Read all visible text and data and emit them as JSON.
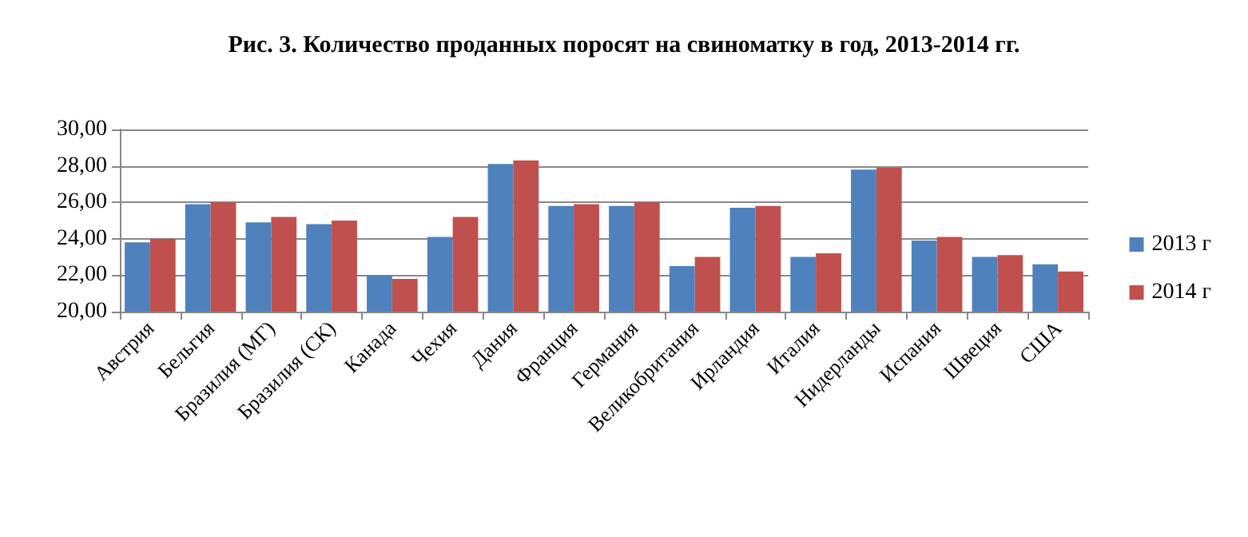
{
  "chart_data": {
    "type": "bar",
    "title": "Рис. 3. Количество проданных поросят на свиноматку в год, 2013-2014 гг.",
    "categories": [
      "Австрия",
      "Бельгия",
      "Бразилия (МГ)",
      "Бразилия (СК)",
      "Канада",
      "Чехия",
      "Дания",
      "Франция",
      "Германия",
      "Великобритания",
      "Ирландия",
      "Италия",
      "Нидерланды",
      "Испания",
      "Швеция",
      "США"
    ],
    "series": [
      {
        "name": "2013 г",
        "color": "#4f81bd",
        "values": [
          23.8,
          25.9,
          24.9,
          24.8,
          22.0,
          24.1,
          28.1,
          25.8,
          25.8,
          22.5,
          25.7,
          23.0,
          27.8,
          23.9,
          23.0,
          22.6
        ]
      },
      {
        "name": "2014 г",
        "color": "#c0504d",
        "values": [
          24.0,
          26.0,
          25.2,
          25.0,
          21.8,
          25.2,
          28.3,
          25.9,
          26.0,
          23.0,
          25.8,
          23.2,
          27.9,
          24.1,
          23.1,
          22.2
        ]
      }
    ],
    "ylim": [
      20,
      30
    ],
    "yticks": [
      {
        "value": 20,
        "label": "20,00"
      },
      {
        "value": 22,
        "label": "22,00"
      },
      {
        "value": 24,
        "label": "24,00"
      },
      {
        "value": 26,
        "label": "26,00"
      },
      {
        "value": 28,
        "label": "28,00"
      },
      {
        "value": 30,
        "label": "30,00"
      }
    ],
    "grid": "y",
    "legend": "right"
  }
}
